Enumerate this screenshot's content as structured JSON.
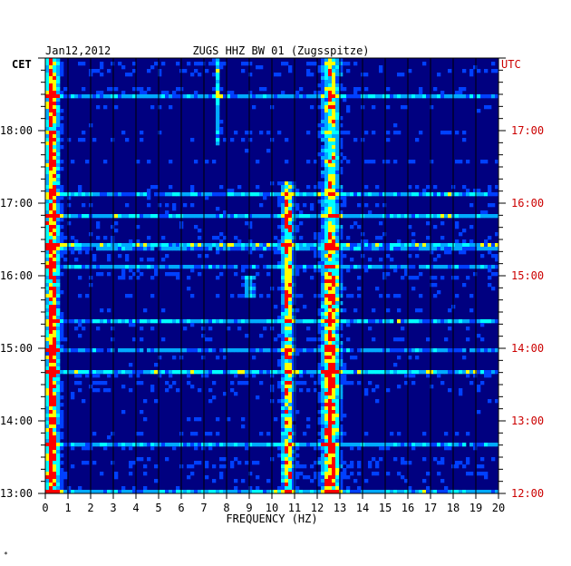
{
  "header": {
    "date": "Jan12,2012",
    "station": "ZUGS HHZ BW 01 (Zugsspitze)",
    "left_zone": "CET",
    "right_zone": "UTC"
  },
  "footer_mark": "*",
  "colors": {
    "background": "#000080",
    "grid": "#000000",
    "utc_text": "#cc0000",
    "scale": [
      "#00007a",
      "#0000cc",
      "#0040ff",
      "#00aaff",
      "#00ffff",
      "#ffff00",
      "#ff0000"
    ]
  },
  "chart_data": {
    "type": "heatmap",
    "xlabel": "FREQUENCY (HZ)",
    "x_range": [
      0,
      20
    ],
    "x_ticks": [
      "0",
      "1",
      "2",
      "3",
      "4",
      "5",
      "6",
      "7",
      "8",
      "9",
      "10",
      "11",
      "12",
      "13",
      "14",
      "15",
      "16",
      "17",
      "18",
      "19",
      "20"
    ],
    "y_ticks_cet": [
      "13:00",
      "14:00",
      "15:00",
      "16:00",
      "17:00",
      "18:00"
    ],
    "y_ticks_utc": [
      "12:00",
      "13:00",
      "14:00",
      "15:00",
      "16:00",
      "17:00"
    ],
    "time_range_cet": [
      "13:00",
      "19:00"
    ],
    "minor_ticks_per_hour": 6,
    "persistent_bands_hz": [
      {
        "freq": 0.3,
        "width": 0.4,
        "strength": 0.95,
        "start_hour": 13.0,
        "end_hour": 19.0
      },
      {
        "freq": 7.6,
        "width": 0.15,
        "strength": 0.45,
        "start_hour": 17.8,
        "end_hour": 19.0
      },
      {
        "freq": 10.7,
        "width": 0.35,
        "strength": 0.75,
        "start_hour": 13.0,
        "end_hour": 17.3
      },
      {
        "freq": 12.6,
        "width": 0.5,
        "strength": 0.95,
        "start_hour": 13.0,
        "end_hour": 16.0
      },
      {
        "freq": 12.6,
        "width": 0.5,
        "strength": 0.7,
        "start_hour": 16.0,
        "end_hour": 19.0
      },
      {
        "freq": 9.0,
        "width": 0.3,
        "strength": 0.5,
        "start_hour": 15.7,
        "end_hour": 16.0
      }
    ]
  }
}
